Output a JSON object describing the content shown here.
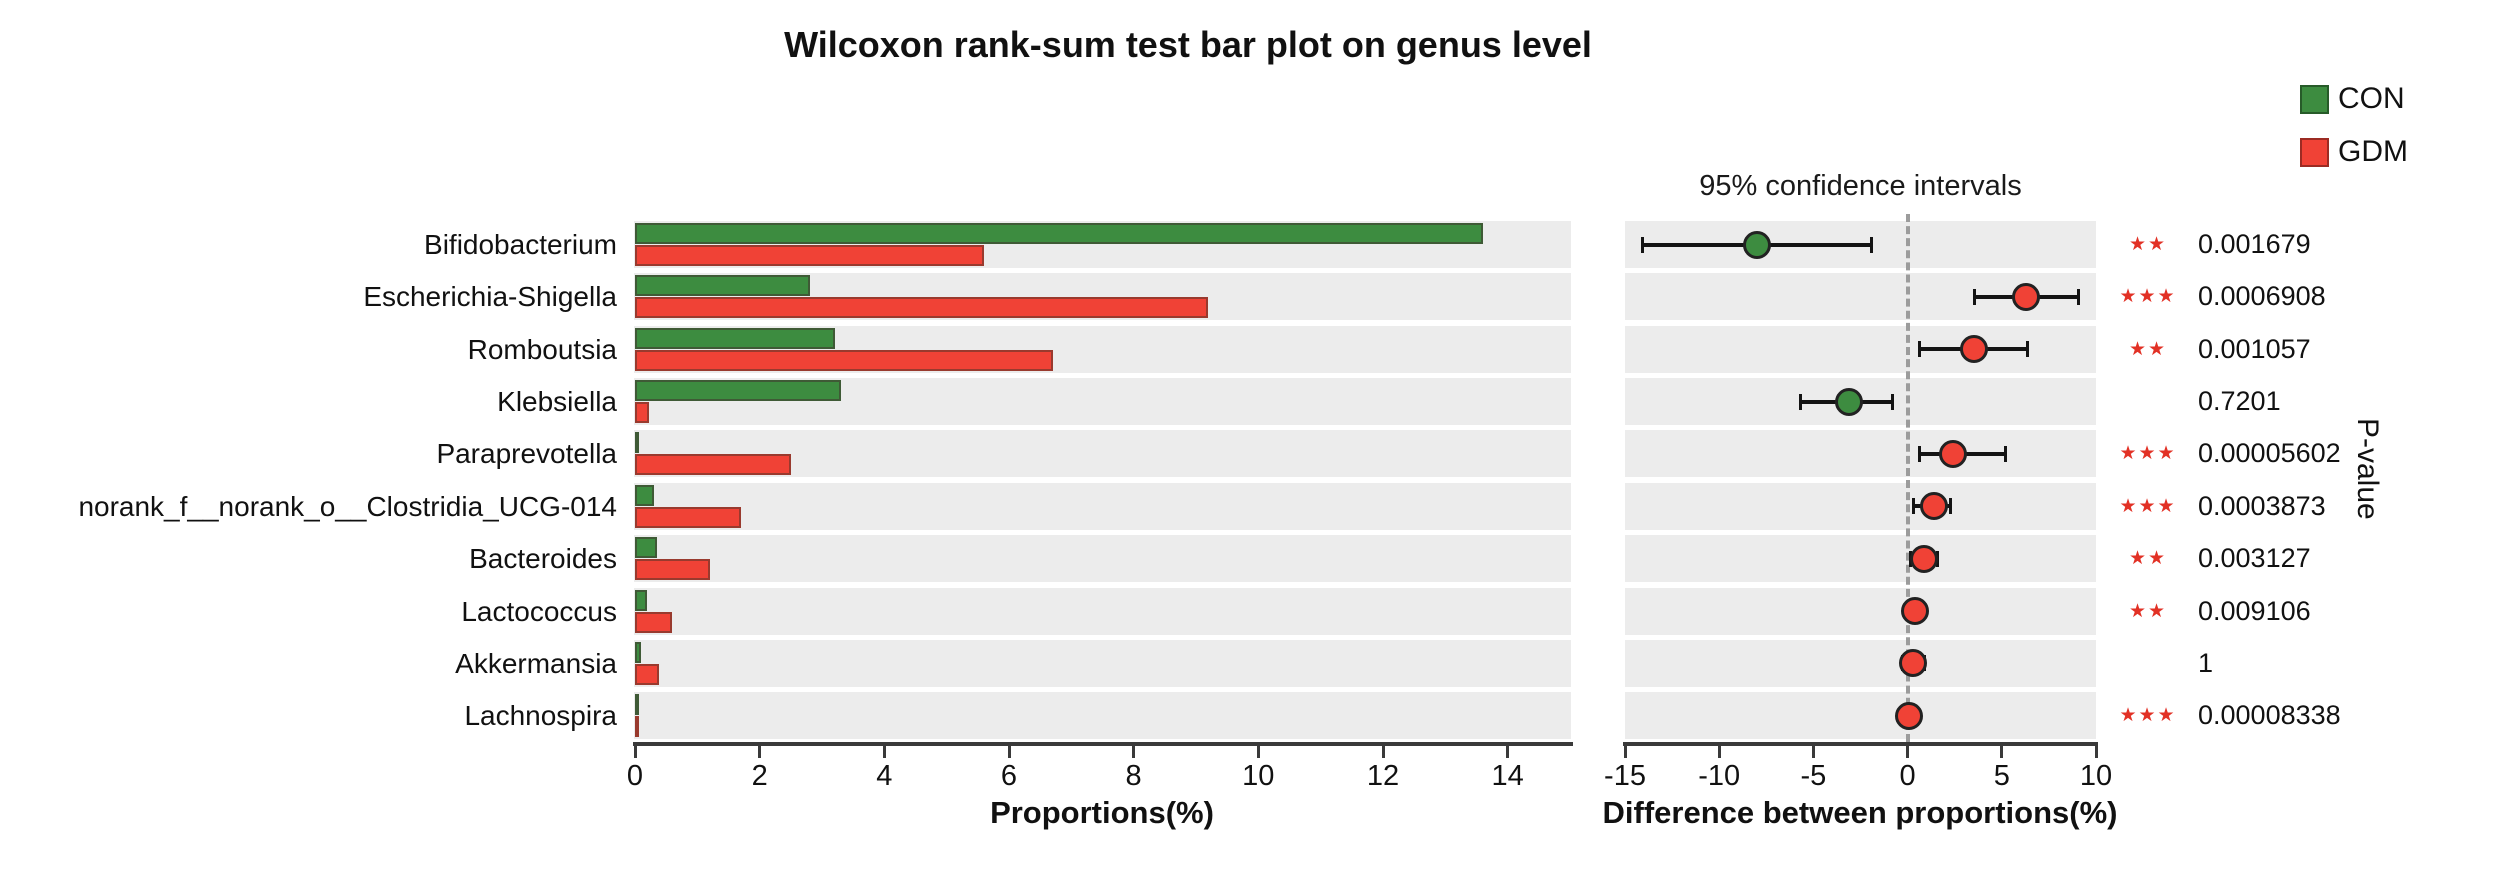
{
  "title": "Wilcoxon rank-sum test bar plot on genus level",
  "legend": {
    "items": [
      {
        "label": "CON",
        "color": "#3d8c40"
      },
      {
        "label": "GDM",
        "color": "#f04236"
      }
    ]
  },
  "panels": {
    "proportions": {
      "axis_label": "Proportions(%)",
      "ticks": [
        0,
        2,
        4,
        6,
        8,
        10,
        12,
        14
      ],
      "range": [
        0,
        15
      ]
    },
    "difference": {
      "title": "95% confidence intervals",
      "axis_label": "Difference between proportions(%)",
      "ticks": [
        -15,
        -10,
        -5,
        0,
        5,
        10
      ],
      "range": [
        -15,
        10
      ],
      "zero_line": 0
    },
    "pvalue_column_label": "P-value"
  },
  "colors": {
    "star_red": "#e23125",
    "row_band": "#ececec",
    "axis": "#3a3a3a"
  },
  "chart_data": {
    "type": "bar",
    "title": "Wilcoxon rank-sum test bar plot on genus level",
    "xlabel_left": "Proportions(%)",
    "xlabel_right": "Difference between proportions(%)",
    "xlim_left": [
      0,
      15
    ],
    "xlim_right": [
      -15,
      10
    ],
    "legend_position": "top-right",
    "grid": false,
    "categories": [
      "Bifidobacterium",
      "Escherichia-Shigella",
      "Romboutsia",
      "Klebsiella",
      "Paraprevotella",
      "norank_f__norank_o__Clostridia_UCG-014",
      "Bacteroides",
      "Lactococcus",
      "Akkermansia",
      "Lachnospira"
    ],
    "series": [
      {
        "name": "CON",
        "color": "#3d8c40",
        "values": [
          13.6,
          2.8,
          3.2,
          3.3,
          0.05,
          0.3,
          0.36,
          0.19,
          0.1,
          0.01
        ]
      },
      {
        "name": "GDM",
        "color": "#f04236",
        "values": [
          5.6,
          9.2,
          6.7,
          0.23,
          2.5,
          1.7,
          1.2,
          0.6,
          0.39,
          0.05
        ]
      }
    ],
    "rows": [
      {
        "genus": "Bifidobacterium",
        "con": 13.6,
        "gdm": 5.6,
        "diff": -8.0,
        "ci_low": -14.1,
        "ci_high": -1.9,
        "enriched": "CON",
        "stars": "★★",
        "p_value": "0.001679"
      },
      {
        "genus": "Escherichia-Shigella",
        "con": 2.8,
        "gdm": 9.2,
        "diff": 6.3,
        "ci_low": 3.5,
        "ci_high": 9.1,
        "enriched": "GDM",
        "stars": "★★★",
        "p_value": "0.0006908"
      },
      {
        "genus": "Romboutsia",
        "con": 3.2,
        "gdm": 6.7,
        "diff": 3.5,
        "ci_low": 0.6,
        "ci_high": 6.4,
        "enriched": "GDM",
        "stars": "★★",
        "p_value": "0.001057"
      },
      {
        "genus": "Klebsiella",
        "con": 3.3,
        "gdm": 0.23,
        "diff": -3.1,
        "ci_low": -5.7,
        "ci_high": -0.8,
        "enriched": "CON",
        "stars": "",
        "p_value": "0.7201"
      },
      {
        "genus": "Paraprevotella",
        "con": 0.05,
        "gdm": 2.5,
        "diff": 2.4,
        "ci_low": 0.6,
        "ci_high": 5.2,
        "enriched": "GDM",
        "stars": "★★★",
        "p_value": "0.00005602"
      },
      {
        "genus": "norank_f__norank_o__Clostridia_UCG-014",
        "con": 0.3,
        "gdm": 1.7,
        "diff": 1.4,
        "ci_low": 0.3,
        "ci_high": 2.3,
        "enriched": "GDM",
        "stars": "★★★",
        "p_value": "0.0003873"
      },
      {
        "genus": "Bacteroides",
        "con": 0.36,
        "gdm": 1.2,
        "diff": 0.85,
        "ci_low": 0.1,
        "ci_high": 1.6,
        "enriched": "GDM",
        "stars": "★★",
        "p_value": "0.003127"
      },
      {
        "genus": "Lactococcus",
        "con": 0.19,
        "gdm": 0.6,
        "diff": 0.4,
        "ci_low": 0.1,
        "ci_high": 0.75,
        "enriched": "GDM",
        "stars": "★★",
        "p_value": "0.009106"
      },
      {
        "genus": "Akkermansia",
        "con": 0.1,
        "gdm": 0.39,
        "diff": 0.3,
        "ci_low": -0.3,
        "ci_high": 0.9,
        "enriched": "GDM",
        "stars": "",
        "p_value": "1"
      },
      {
        "genus": "Lachnospira",
        "con": 0.01,
        "gdm": 0.05,
        "diff": 0.05,
        "ci_low": 0.0,
        "ci_high": 0.12,
        "enriched": "GDM",
        "stars": "★★★",
        "p_value": "0.00008338"
      }
    ]
  }
}
